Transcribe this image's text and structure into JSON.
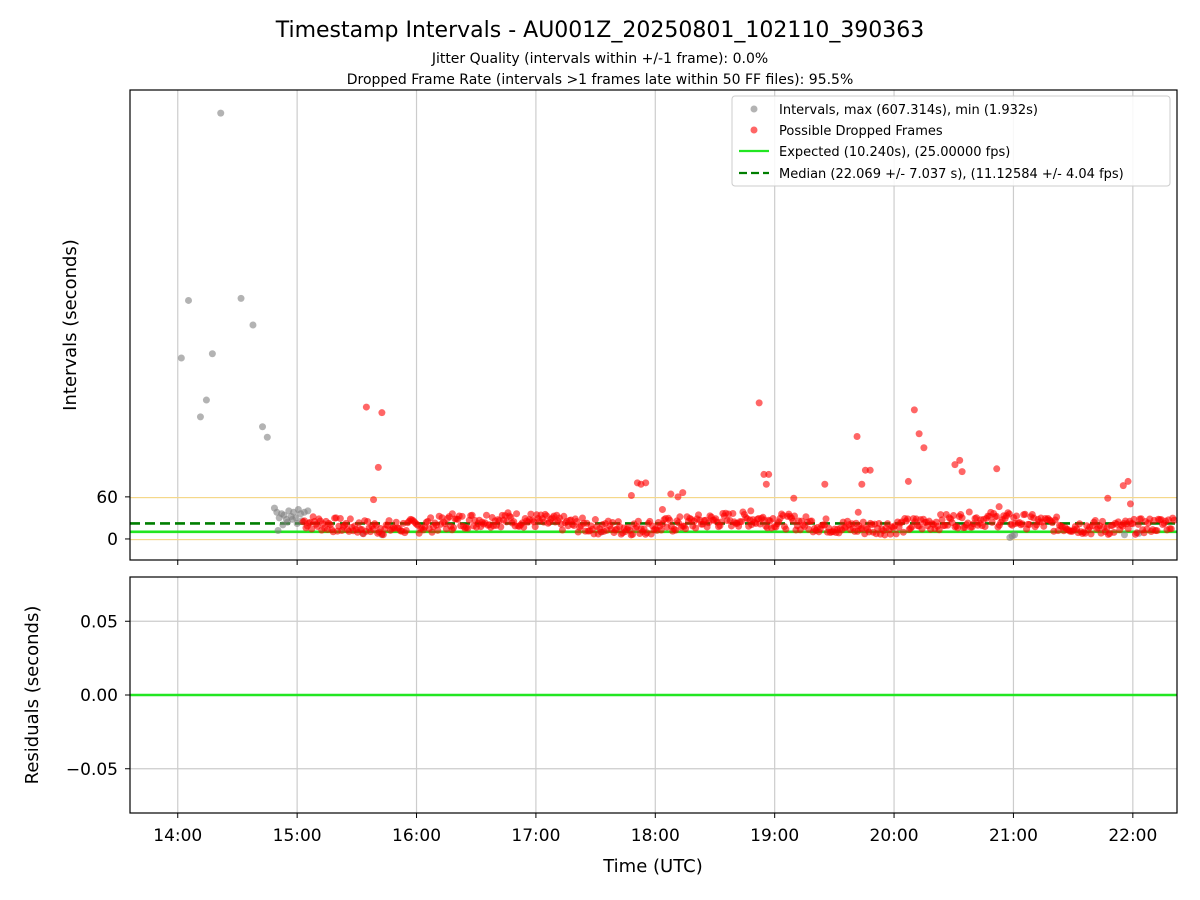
{
  "chart_data": {
    "title": "Timestamp Intervals - AU001Z_20250801_102110_390363",
    "subtitles": [
      "Jitter Quality (intervals within +/-1 frame): 0.0%",
      "Dropped Frame Rate (intervals >1 frames late within 50 FF files): 95.5%"
    ],
    "xlabel": "Time (UTC)",
    "x_tick_labels": [
      "14:00",
      "15:00",
      "16:00",
      "17:00",
      "18:00",
      "19:00",
      "20:00",
      "21:00",
      "22:00"
    ],
    "x_ticks_hours": [
      14,
      15,
      16,
      17,
      18,
      19,
      20,
      21,
      22
    ],
    "xlim_hours": [
      13.6,
      22.37
    ],
    "colors": {
      "intervals": "#808080",
      "dropped": "#ff0000",
      "expected": "#22e622",
      "median": "#007f00",
      "jitter_band": "#f5d88a",
      "grid": "#cccccc"
    },
    "panels": [
      {
        "type": "scatter",
        "ylabel": "Intervals (seconds)",
        "y_tick_labels": [
          "0",
          "60"
        ],
        "y_ticks": [
          0,
          60
        ],
        "ylim": [
          -30,
          640
        ],
        "grid": "x",
        "legend_position": "top-right",
        "legend": [
          {
            "label": "Intervals, max (607.314s), min (1.932s)",
            "kind": "marker",
            "color": "#808080"
          },
          {
            "label": "Possible Dropped Frames",
            "kind": "marker",
            "color": "#ff0000"
          },
          {
            "label": "Expected (10.240s), (25.00000 fps)",
            "kind": "line",
            "color": "#22e622"
          },
          {
            "label": "Median (22.069 +/- 7.037 s), (11.12584 +/- 4.04 fps)",
            "kind": "dashed",
            "color": "#007f00"
          }
        ],
        "expected_interval": 10.24,
        "median_interval": 22.069,
        "jitter_band_upper": 60,
        "jitter_band_lower": 1,
        "series_intervals": {
          "name": "Intervals, max (607.314s), min (1.932s)",
          "x": [
            14.03,
            14.09,
            14.19,
            14.24,
            14.29,
            14.36,
            14.53,
            14.63,
            14.71,
            14.75,
            14.81,
            14.83,
            14.85,
            14.87,
            14.89,
            14.91,
            14.93,
            14.95,
            14.97,
            14.99,
            15.01,
            15.03,
            15.06,
            15.09,
            14.84,
            14.88,
            14.92,
            14.96,
            15.0,
            15.04,
            15.55,
            15.71,
            17.55,
            20.97,
            20.99,
            21.01,
            21.93,
            22.05
          ],
          "y": [
            258,
            340,
            174,
            198,
            264,
            607,
            343,
            305,
            160,
            145,
            44,
            38,
            30,
            36,
            34,
            28,
            40,
            32,
            38,
            30,
            42,
            36,
            38,
            40,
            12,
            20,
            24,
            28,
            22,
            26,
            8,
            6,
            10,
            2,
            4,
            6,
            6,
            8
          ]
        },
        "series_dropped": {
          "name": "Possible Dropped Frames",
          "x": [
            15.58,
            15.71,
            15.68,
            15.64,
            17.85,
            17.88,
            17.92,
            18.13,
            18.19,
            18.23,
            18.87,
            18.91,
            18.95,
            18.93,
            19.16,
            19.42,
            19.69,
            19.73,
            19.76,
            19.8,
            20.12,
            20.17,
            20.21,
            20.25,
            20.51,
            20.55,
            20.57,
            20.86,
            20.88,
            21.79,
            21.92,
            21.96,
            21.98,
            18.06,
            19.7,
            18.8,
            16.3,
            17.8
          ],
          "y": [
            188,
            180,
            102,
            56,
            80,
            78,
            80,
            64,
            60,
            66,
            194,
            92,
            92,
            78,
            58,
            78,
            146,
            78,
            98,
            98,
            82,
            184,
            150,
            130,
            106,
            112,
            96,
            100,
            46,
            58,
            76,
            82,
            50,
            42,
            38,
            40,
            36,
            62
          ]
        }
      },
      {
        "type": "line",
        "ylabel": "Residuals (seconds)",
        "y_tick_labels": [
          "−0.05",
          "0.00",
          "0.05"
        ],
        "y_ticks": [
          -0.05,
          0.0,
          0.05
        ],
        "ylim": [
          -0.08,
          0.08
        ],
        "grid": "both",
        "series": [
          {
            "x": [
              13.6,
              22.37
            ],
            "y": [
              0,
              0
            ]
          }
        ]
      }
    ]
  }
}
